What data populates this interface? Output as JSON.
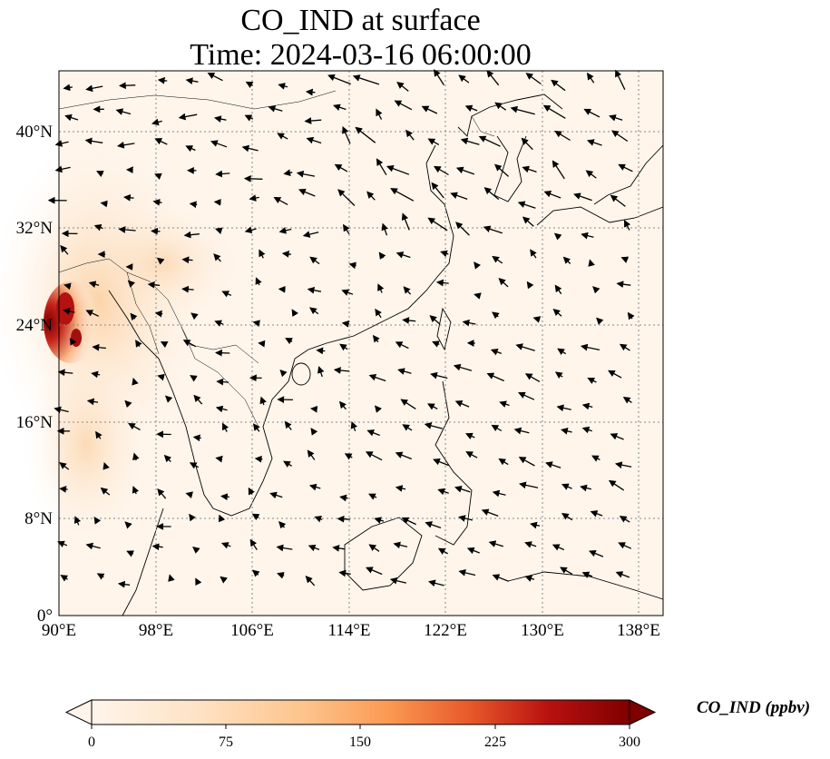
{
  "title": {
    "line1": "CO_IND at surface",
    "line2": "Time: 2024-03-16 06:00:00"
  },
  "map": {
    "lon_ticks": [
      "90°E",
      "98°E",
      "106°E",
      "114°E",
      "122°E",
      "130°E",
      "138°E"
    ],
    "lat_ticks": [
      "0°",
      "8°N",
      "16°N",
      "24°N",
      "32°N",
      "40°N"
    ],
    "lon_range": [
      90,
      140
    ],
    "lat_range": [
      0,
      45
    ],
    "gridlines": true,
    "colors": {
      "land_line": "#000000",
      "grid": "#888888"
    }
  },
  "colorbar": {
    "label": "CO_IND (ppbv)",
    "ticks": [
      "0",
      "75",
      "150",
      "225",
      "300"
    ],
    "range": [
      0,
      300
    ],
    "extend": "both",
    "colors": [
      "#fff5eb",
      "#fdd9b2",
      "#fdae6b",
      "#f16913",
      "#d94801",
      "#a30f0f",
      "#7f0000"
    ]
  }
}
